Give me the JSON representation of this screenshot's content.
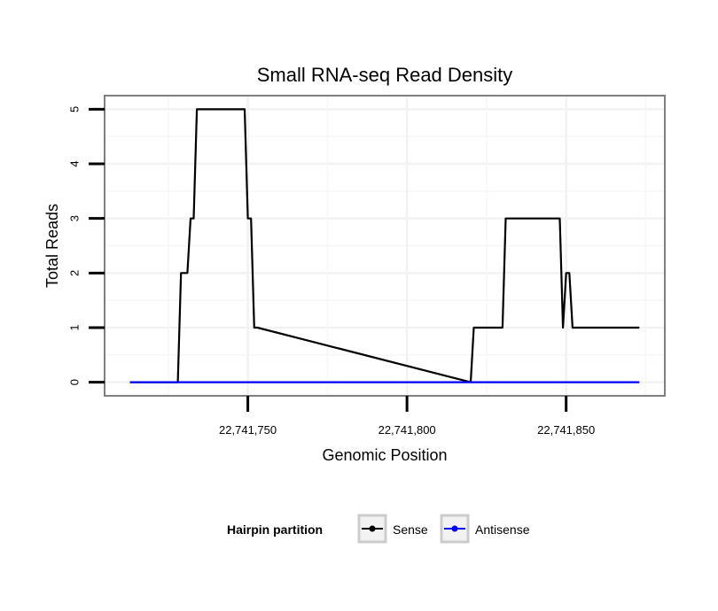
{
  "chart_data": {
    "type": "line",
    "title": "Small RNA-seq Read Density",
    "xlabel": "Genomic Position",
    "ylabel": "Total Reads",
    "xlim": [
      22741705,
      22741881
    ],
    "ylim": [
      -0.25,
      5.25
    ],
    "xticks": [
      22741750,
      22741800,
      22741850
    ],
    "xtick_labels": [
      "22,741,750",
      "22,741,800",
      "22,741,850"
    ],
    "yticks": [
      0,
      1,
      2,
      3,
      4,
      5
    ],
    "ytick_labels": [
      "0",
      "1",
      "2",
      "3",
      "4",
      "5"
    ],
    "grid": true,
    "legend": {
      "title": "Hairpin partition",
      "position": "bottom"
    },
    "series": [
      {
        "name": "Sense",
        "color": "#000000",
        "x": [
          22741713,
          22741728,
          22741729,
          22741731,
          22741732,
          22741733,
          22741734,
          22741749,
          22741750,
          22741751,
          22741752,
          22741753,
          22741820,
          22741821,
          22741830,
          22741831,
          22741848,
          22741849,
          22741850,
          22741851,
          22741852,
          22741873
        ],
        "y": [
          0,
          0,
          2,
          2,
          3,
          3,
          5,
          5,
          3,
          3,
          1,
          1,
          0,
          1,
          1,
          3,
          3,
          1,
          2,
          2,
          1,
          1
        ]
      },
      {
        "name": "Antisense",
        "color": "#0000ff",
        "x": [
          22741713,
          22741873
        ],
        "y": [
          0,
          0
        ]
      }
    ]
  }
}
